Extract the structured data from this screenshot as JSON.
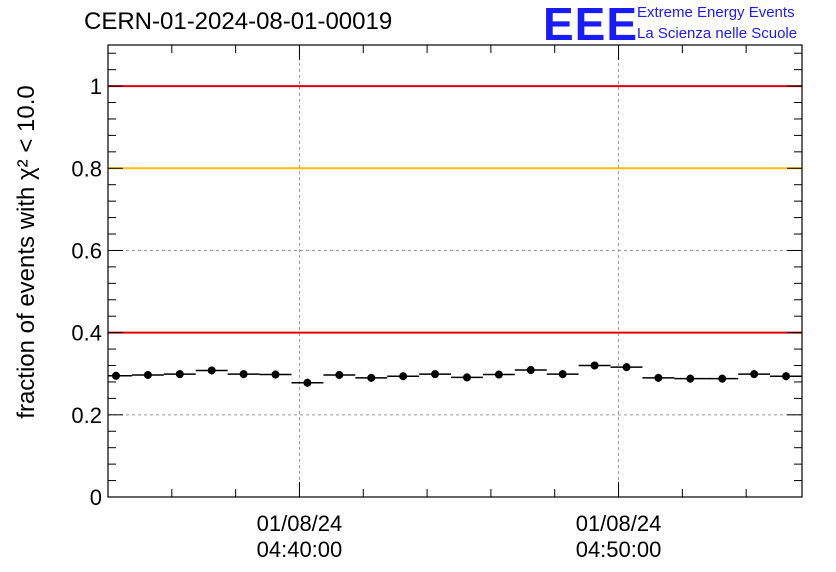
{
  "header": {
    "title": "CERN-01-2024-08-01-00019"
  },
  "logo": {
    "letters": "EEE",
    "line1": "Extreme Energy Events",
    "line2": "La Scienza nelle Scuole",
    "color": "#1a1aff"
  },
  "chart_data": {
    "type": "scatter",
    "title": "CERN-01-2024-08-01-00019",
    "ylabel": "fraction of events with χ² < 10.0",
    "xlabel": "",
    "ylim": [
      0,
      1.1
    ],
    "x_range_minutes": [
      34,
      55.75
    ],
    "y_ticks": [
      "0",
      "0.2",
      "0.4",
      "0.6",
      "0.8",
      "1"
    ],
    "x_ticks": [
      {
        "minute": 40,
        "date": "01/08/24",
        "time": "04:40:00"
      },
      {
        "minute": 50,
        "date": "01/08/24",
        "time": "04:50:00"
      }
    ],
    "grid": true,
    "reference_lines": [
      {
        "y": 1.0,
        "color": "#e00000"
      },
      {
        "y": 0.8,
        "color": "#ffbf00"
      },
      {
        "y": 0.4,
        "color": "#e00000"
      }
    ],
    "bin_width_minutes": 1,
    "series": [
      {
        "marker": "circle",
        "color": "#000000",
        "x_minutes": [
          34.25,
          35.25,
          36.25,
          37.25,
          38.25,
          39.25,
          40.25,
          41.25,
          42.25,
          43.25,
          44.25,
          45.25,
          46.25,
          47.25,
          48.25,
          49.25,
          50.25,
          51.25,
          52.25,
          53.25,
          54.25,
          55.25
        ],
        "values": [
          0.295,
          0.297,
          0.299,
          0.308,
          0.299,
          0.298,
          0.278,
          0.297,
          0.29,
          0.294,
          0.299,
          0.291,
          0.298,
          0.309,
          0.299,
          0.32,
          0.316,
          0.29,
          0.288,
          0.288,
          0.299,
          0.294
        ]
      }
    ]
  }
}
